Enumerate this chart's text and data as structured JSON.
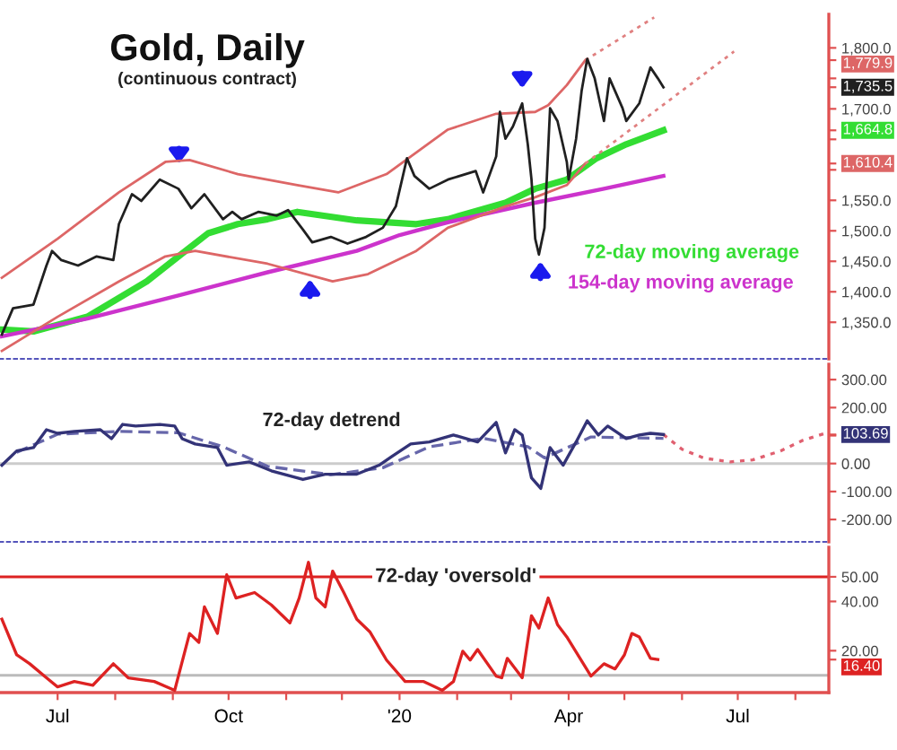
{
  "chart_data": [
    {
      "type": "line",
      "title": "Gold, Daily",
      "subtitle": "(continuous contract)",
      "tick_labels": "y",
      "xlim": [
        "2019-05-31",
        "2020-08-19"
      ],
      "ylim": [
        1290,
        1855
      ],
      "yticks": [
        {
          "value": 1350,
          "label": "1,350.0"
        },
        {
          "value": 1400,
          "label": "1,400.0"
        },
        {
          "value": 1450,
          "label": "1,450.0"
        },
        {
          "value": 1500,
          "label": "1,500.0"
        },
        {
          "value": 1550,
          "label": "1,550.0"
        },
        {
          "value": 1600,
          "label": null
        },
        {
          "value": 1610.4,
          "label": "1,610.4"
        },
        {
          "value": 1650,
          "label": null
        },
        {
          "value": 1664.8,
          "label": "1,664.8"
        },
        {
          "value": 1700,
          "label": "1,700.0"
        },
        {
          "value": 1735.5,
          "label": "1,735.5"
        },
        {
          "value": 1750,
          "label": null
        },
        {
          "value": 1779.9,
          "label": "1,779.9"
        },
        {
          "value": 1800,
          "label": "1,800.0"
        }
      ],
      "series": [
        {
          "color": "#202020",
          "x": [
            "2019-06-01",
            "2019-06-07",
            "2019-06-18",
            "2019-06-25",
            "2019-06-28",
            "2019-07-03",
            "2019-07-12",
            "2019-07-22",
            "2019-07-31",
            "2019-08-03",
            "2019-08-10",
            "2019-08-15",
            "2019-08-25",
            "2019-09-04",
            "2019-09-11",
            "2019-09-18",
            "2019-09-28",
            "2019-10-03",
            "2019-10-08",
            "2019-10-17",
            "2019-10-27",
            "2019-11-02",
            "2019-11-10",
            "2019-11-15",
            "2019-11-25",
            "2019-12-04",
            "2019-12-14",
            "2019-12-23",
            "2019-12-30",
            "2020-01-05",
            "2020-01-09",
            "2020-01-17",
            "2020-01-27",
            "2020-02-11",
            "2020-02-15",
            "2020-02-22",
            "2020-02-24",
            "2020-02-27",
            "2020-03-02",
            "2020-03-07",
            "2020-03-10",
            "2020-03-12",
            "2020-03-14",
            "2020-03-16",
            "2020-03-19",
            "2020-03-22",
            "2020-03-26",
            "2020-03-31",
            "2020-04-01",
            "2020-04-05",
            "2020-04-08",
            "2020-04-11",
            "2020-04-15",
            "2020-04-20",
            "2020-04-23",
            "2020-04-30",
            "2020-05-02",
            "2020-05-09",
            "2020-05-15",
            "2020-05-19",
            "2020-05-22"
          ],
          "values": [
            1330,
            1373,
            1379,
            1443,
            1467,
            1452,
            1443,
            1458,
            1452,
            1511,
            1560,
            1549,
            1584,
            1569,
            1537,
            1560,
            1519,
            1531,
            1519,
            1531,
            1525,
            1534,
            1502,
            1481,
            1490,
            1479,
            1490,
            1505,
            1540,
            1619,
            1590,
            1569,
            1584,
            1598,
            1563,
            1622,
            1695,
            1651,
            1671,
            1709,
            1642,
            1584,
            1487,
            1461,
            1505,
            1701,
            1680,
            1613,
            1584,
            1651,
            1730,
            1782,
            1750,
            1680,
            1750,
            1701,
            1680,
            1709,
            1768,
            1750,
            1735.5
          ]
        },
        {
          "name": "72-day moving average",
          "color": "#33dd33",
          "x": [
            "2019-06-01",
            "2019-06-18",
            "2019-07-17",
            "2019-08-18",
            "2019-09-04",
            "2019-09-20",
            "2019-10-06",
            "2019-10-22",
            "2019-11-07",
            "2019-12-09",
            "2020-01-10",
            "2020-01-27",
            "2020-02-27",
            "2020-03-14",
            "2020-03-31",
            "2020-04-16",
            "2020-05-02",
            "2020-05-22"
          ],
          "values": [
            1338,
            1335,
            1359,
            1417,
            1458,
            1496,
            1511,
            1519,
            1531,
            1517,
            1511,
            1519,
            1546,
            1569,
            1584,
            1619,
            1642,
            1664.8
          ]
        },
        {
          "name": "154-day moving average",
          "color": "#cc33cc",
          "x": [
            "2019-06-01",
            "2019-07-17",
            "2019-09-04",
            "2019-10-22",
            "2019-12-09",
            "2020-01-01",
            "2020-01-27",
            "2020-03-14",
            "2020-04-20",
            "2020-05-22"
          ],
          "values": [
            1327,
            1356,
            1394,
            1432,
            1467,
            1493,
            1514,
            1546,
            1569,
            1590
          ]
        },
        {
          "color": "#dd6666",
          "x": [
            "2019-06-01",
            "2019-07-01",
            "2019-08-03",
            "2019-08-28",
            "2019-09-10",
            "2019-10-06",
            "2019-11-07",
            "2019-11-29",
            "2019-12-25",
            "2020-01-27",
            "2020-02-22",
            "2020-03-14",
            "2020-03-21",
            "2020-03-31",
            "2020-04-10"
          ],
          "values": [
            1423,
            1487,
            1563,
            1613,
            1616,
            1593,
            1575,
            1563,
            1593,
            1666,
            1692,
            1695,
            1706,
            1739,
            1779.9
          ]
        },
        {
          "color": "#dd6666",
          "x": [
            "2019-06-01",
            "2019-07-01",
            "2019-08-03",
            "2019-08-28",
            "2019-09-13",
            "2019-10-22",
            "2019-11-26",
            "2019-12-15",
            "2020-01-10",
            "2020-01-27",
            "2020-02-27",
            "2020-03-14",
            "2020-03-31",
            "2020-04-10"
          ],
          "values": [
            1303,
            1359,
            1417,
            1458,
            1467,
            1446,
            1417,
            1429,
            1467,
            1505,
            1540,
            1555,
            1575,
            1610.4
          ]
        },
        {
          "color": "#e08080",
          "line_style": "dotted",
          "x": [
            "2020-04-10",
            "2020-05-17"
          ],
          "values": [
            1779.9,
            1850
          ]
        },
        {
          "color": "#e08080",
          "line_style": "dotted",
          "x": [
            "2020-04-10",
            "2020-06-29"
          ],
          "values": [
            1610.4,
            1794
          ]
        }
      ]
    },
    {
      "type": "line",
      "tick_labels": "y",
      "xlim": [
        "2019-05-31",
        "2020-08-19"
      ],
      "ylim": [
        -280,
        355
      ],
      "yticks": [
        {
          "value": -200,
          "label": "-200.00"
        },
        {
          "value": -100,
          "label": "-100.00"
        },
        {
          "value": 0,
          "label": "0.00"
        },
        {
          "value": 100,
          "label": null
        },
        {
          "value": 103.69,
          "label": "103.69"
        },
        {
          "value": 200,
          "label": "200.00"
        },
        {
          "value": 300,
          "label": "300.00"
        }
      ],
      "ref_lines": [
        {
          "axis": "y",
          "value": 0,
          "color": "#cccccc"
        }
      ],
      "series": [
        {
          "name": "72-day detrend",
          "color": "#333377",
          "x": [
            "2019-06-01",
            "2019-06-09",
            "2019-06-18",
            "2019-06-25",
            "2019-07-01",
            "2019-07-10",
            "2019-07-24",
            "2019-07-30",
            "2019-08-05",
            "2019-08-12",
            "2019-08-25",
            "2019-09-02",
            "2019-09-06",
            "2019-09-13",
            "2019-09-25",
            "2019-09-30",
            "2019-10-12",
            "2019-10-24",
            "2019-11-10",
            "2019-11-22",
            "2019-12-09",
            "2019-12-21",
            "2019-12-28",
            "2020-01-07",
            "2020-01-17",
            "2020-01-30",
            "2020-02-12",
            "2020-02-22",
            "2020-02-27",
            "2020-03-03",
            "2020-03-07",
            "2020-03-12",
            "2020-03-17",
            "2020-03-22",
            "2020-03-29",
            "2020-04-05",
            "2020-04-11",
            "2020-04-17",
            "2020-04-22",
            "2020-05-02",
            "2020-05-09",
            "2020-05-15",
            "2020-05-22"
          ],
          "values": [
            -6,
            45,
            57,
            121,
            108,
            115,
            121,
            89,
            140,
            134,
            140,
            134,
            89,
            70,
            57,
            -6,
            6,
            -26,
            -57,
            -38,
            -38,
            -6,
            26,
            70,
            77,
            102,
            77,
            147,
            38,
            121,
            102,
            -51,
            -89,
            57,
            -6,
            77,
            153,
            102,
            134,
            89,
            102,
            108,
            103.69
          ]
        },
        {
          "color": "#6666aa",
          "line_style": "dashed",
          "x": [
            "2019-06-09",
            "2019-07-01",
            "2019-08-03",
            "2019-09-04",
            "2019-09-28",
            "2019-10-22",
            "2019-11-25",
            "2019-12-23",
            "2020-01-17",
            "2020-02-15",
            "2020-03-10",
            "2020-03-19",
            "2020-04-13",
            "2020-05-22"
          ],
          "values": [
            40,
            105,
            115,
            110,
            60,
            -10,
            -40,
            -15,
            60,
            90,
            60,
            20,
            95,
            90
          ]
        },
        {
          "color": "#e06070",
          "line_style": "dotted",
          "x": [
            "2020-05-22",
            "2020-06-01",
            "2020-06-13",
            "2020-06-27",
            "2020-07-09",
            "2020-07-24",
            "2020-08-05",
            "2020-08-17"
          ],
          "values": [
            103.69,
            51,
            19,
            6,
            13,
            45,
            83,
            108
          ]
        }
      ]
    },
    {
      "type": "line",
      "xlim": [
        "2019-05-31",
        "2020-08-19"
      ],
      "xticks": [
        {
          "value": "2019-07-01",
          "label": "Jul"
        },
        {
          "value": "2019-08-01",
          "label": null
        },
        {
          "value": "2019-09-01",
          "label": null
        },
        {
          "value": "2019-10-01",
          "label": "Oct"
        },
        {
          "value": "2019-11-01",
          "label": null
        },
        {
          "value": "2019-12-01",
          "label": null
        },
        {
          "value": "2020-01-01",
          "label": "'20"
        },
        {
          "value": "2020-02-01",
          "label": null
        },
        {
          "value": "2020-03-01",
          "label": null
        },
        {
          "value": "2020-04-01",
          "label": "Apr"
        },
        {
          "value": "2020-05-01",
          "label": null
        },
        {
          "value": "2020-06-01",
          "label": null
        },
        {
          "value": "2020-07-01",
          "label": "Jul"
        },
        {
          "value": "2020-08-01",
          "label": null
        }
      ],
      "ylim": [
        3,
        62
      ],
      "yticks": [
        {
          "value": 16.4,
          "label": "16.40"
        },
        {
          "value": 20,
          "label": "20.00"
        },
        {
          "value": 40,
          "label": "40.00"
        },
        {
          "value": 50,
          "label": "50.00"
        }
      ],
      "ref_lines": [
        {
          "axis": "y",
          "value": 50,
          "label": "72-day 'oversold'",
          "color": "#dd2222"
        },
        {
          "axis": "y",
          "value": 10,
          "color": "#bbbbbb"
        }
      ],
      "series": [
        {
          "color": "#dd2222",
          "x": [
            "2019-06-01",
            "2019-06-09",
            "2019-06-16",
            "2019-06-25",
            "2019-07-01",
            "2019-07-10",
            "2019-07-20",
            "2019-07-31",
            "2019-08-08",
            "2019-08-22",
            "2019-09-02",
            "2019-09-10",
            "2019-09-15",
            "2019-09-18",
            "2019-09-25",
            "2019-09-30",
            "2019-10-05",
            "2019-10-15",
            "2019-10-24",
            "2019-11-03",
            "2019-11-08",
            "2019-11-13",
            "2019-11-17",
            "2019-11-22",
            "2019-11-26",
            "2019-12-02",
            "2019-12-09",
            "2019-12-16",
            "2019-12-25",
            "2020-01-04",
            "2020-01-14",
            "2020-01-24",
            "2020-01-30",
            "2020-02-04",
            "2020-02-08",
            "2020-02-12",
            "2020-02-22",
            "2020-02-25",
            "2020-02-28",
            "2020-03-07",
            "2020-03-12",
            "2020-03-16",
            "2020-03-21",
            "2020-03-26",
            "2020-03-31",
            "2020-04-13",
            "2020-04-20",
            "2020-04-26",
            "2020-05-01",
            "2020-05-05",
            "2020-05-09",
            "2020-05-15",
            "2020-05-19"
          ],
          "values": [
            32.8,
            18.3,
            14.7,
            9,
            5.3,
            7.5,
            6,
            14.7,
            9,
            7.5,
            3.9,
            27,
            23.4,
            37.8,
            27,
            50.8,
            41.4,
            43.6,
            38.6,
            31.3,
            41.4,
            55.9,
            41.4,
            37.8,
            52.3,
            43.6,
            32.8,
            27.7,
            16.2,
            7.5,
            7.5,
            3.9,
            7.5,
            19.8,
            16.2,
            20.5,
            9.7,
            9,
            16.9,
            9,
            34.2,
            29.2,
            41.4,
            30.6,
            25.6,
            9.7,
            14.7,
            12.6,
            18.3,
            27,
            25.6,
            16.9,
            16.4
          ]
        }
      ]
    }
  ]
}
